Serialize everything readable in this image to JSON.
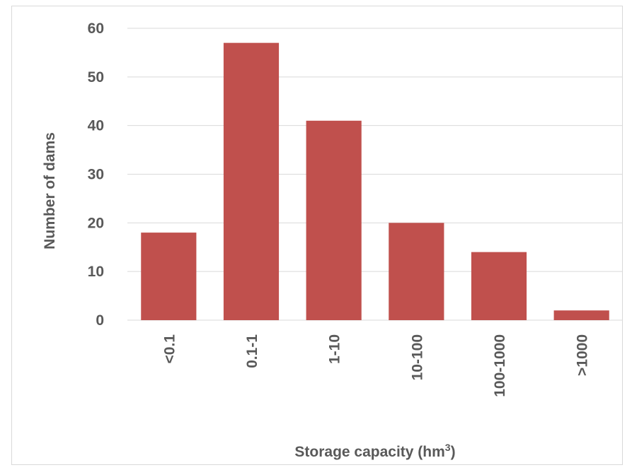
{
  "chart_data": {
    "type": "bar",
    "categories": [
      "<0.1",
      "0.1-1",
      "1-10",
      "10-100",
      "100-1000",
      ">1000"
    ],
    "values": [
      18,
      57,
      41,
      20,
      14,
      2
    ],
    "xlabel_main": "Storage capacity (hm",
    "xlabel_sup": "3",
    "xlabel_close": ")",
    "ylabel": "Number of dams",
    "ylim": [
      0,
      60
    ],
    "yticks": [
      "0",
      "10",
      "20",
      "30",
      "40",
      "50",
      "60"
    ],
    "grid": true,
    "bar_color": "#c0504d",
    "grid_color": "#d9d9d9"
  }
}
